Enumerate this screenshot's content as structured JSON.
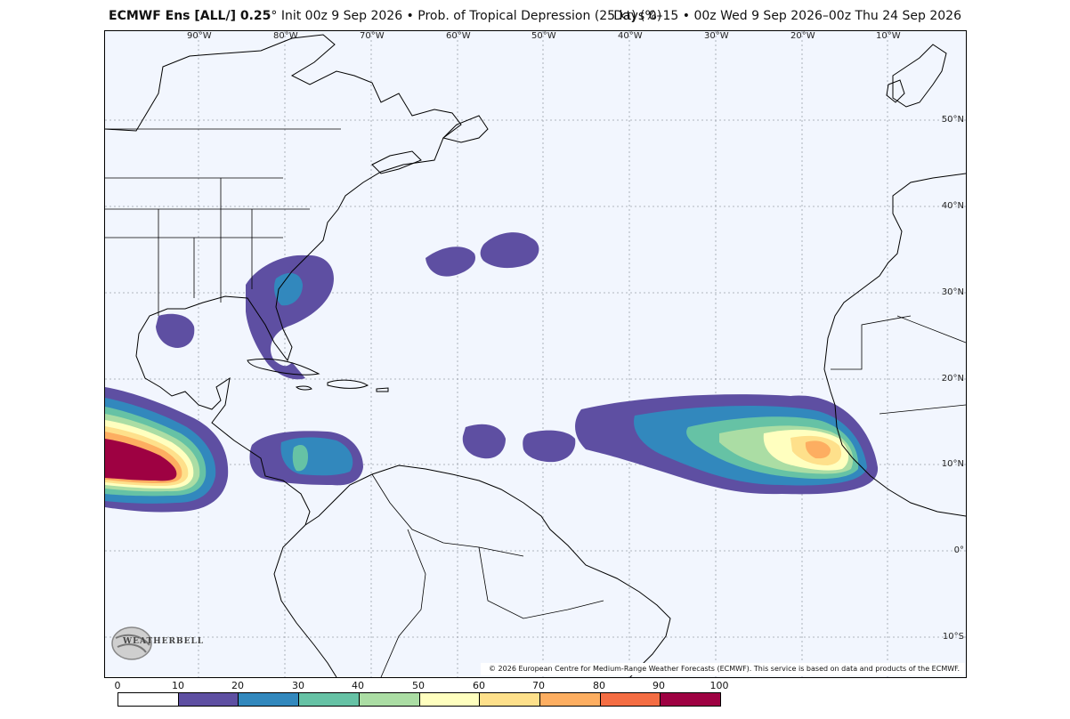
{
  "title": {
    "model": "ECMWF Ens [ALL/] 0.25",
    "degree_mark": "°",
    "rest": " Init 00z 9 Sep 2026 • Prob. of Tropical Depression (25 kt) (%)",
    "right": "Days 0–15 • 00z Wed 9 Sep 2026–00z Thu 24 Sep 2026"
  },
  "map": {
    "longitude_labels": [
      "90°W",
      "80°W",
      "70°W",
      "60°W",
      "50°W",
      "40°W",
      "30°W",
      "20°W",
      "10°W"
    ],
    "latitude_labels": [
      "50°N",
      "40°N",
      "30°N",
      "20°N",
      "10°N",
      "0°",
      "10°S"
    ],
    "copyright": "© 2026 European Centre for Medium-Range Weather Forecasts (ECMWF). This service is based on data and products of the ECMWF.",
    "logo_text": "WEATHERBELL"
  },
  "colorbar": {
    "ticks": [
      "0",
      "10",
      "20",
      "30",
      "40",
      "50",
      "60",
      "70",
      "80",
      "90",
      "100"
    ],
    "colors": [
      "#ffffff",
      "#5e4fa2",
      "#3288bd",
      "#66c2a5",
      "#abdda4",
      "#ffffbf",
      "#fee08b",
      "#fdae61",
      "#f46d43",
      "#9e0142"
    ]
  },
  "colors": {
    "ocean": "#f2f6fe",
    "prob_10_20": "#5e4fa2",
    "prob_20_30": "#3288bd",
    "prob_30_40": "#66c2a5",
    "prob_40_50": "#abdda4",
    "prob_50_60": "#ffffbf",
    "prob_60_70": "#fee08b",
    "prob_70_80": "#fdae61",
    "prob_80_90": "#f46d43",
    "prob_90_100": "#9e0142"
  }
}
